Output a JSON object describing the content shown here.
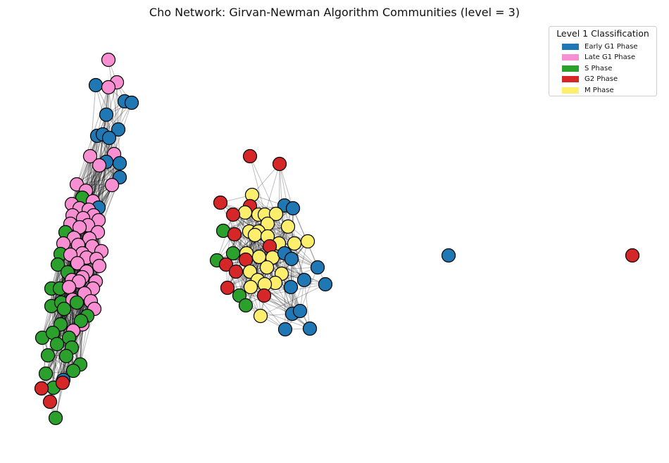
{
  "title": "Cho Network: Girvan-Newman Algorithm Communities (level = 3)",
  "legend": {
    "title": "Level 1 Classification",
    "items": [
      {
        "label": "Early G1 Phase",
        "color": "#1f77b4"
      },
      {
        "label": "Late G1 Phase",
        "color": "#f78fd2"
      },
      {
        "label": "S Phase",
        "color": "#2ca02c"
      },
      {
        "label": "G2 Phase",
        "color": "#d62728"
      },
      {
        "label": "M Phase",
        "color": "#fdef6d"
      }
    ]
  },
  "nodes": {
    "cluster1": [
      [
        "late",
        154,
        85
      ],
      [
        "early",
        136,
        121
      ],
      [
        "late",
        166,
        117
      ],
      [
        "late",
        154,
        124
      ],
      [
        "early",
        177,
        144
      ],
      [
        "early",
        187,
        146
      ],
      [
        "early",
        151,
        163
      ],
      [
        "early",
        168,
        184
      ],
      [
        "early",
        138,
        193
      ],
      [
        "early",
        146,
        191
      ],
      [
        "early",
        155,
        196
      ],
      [
        "late",
        128,
        222
      ],
      [
        "late",
        162,
        219
      ],
      [
        "early",
        170,
        232
      ],
      [
        "early",
        151,
        230
      ],
      [
        "late",
        141,
        235
      ],
      [
        "early",
        170,
        252
      ],
      [
        "late",
        159,
        263
      ],
      [
        "late",
        109,
        262
      ],
      [
        "late",
        122,
        271
      ],
      [
        "s",
        117,
        281
      ],
      [
        "late",
        102,
        290
      ],
      [
        "late",
        132,
        286
      ],
      [
        "late",
        113,
        296
      ],
      [
        "early",
        140,
        295
      ],
      [
        "late",
        126,
        298
      ],
      [
        "late",
        103,
        306
      ],
      [
        "late",
        133,
        306
      ],
      [
        "late",
        118,
        310
      ],
      [
        "late",
        140,
        313
      ],
      [
        "late",
        100,
        318
      ],
      [
        "late",
        125,
        320
      ],
      [
        "late",
        113,
        323
      ],
      [
        "s",
        93,
        330
      ],
      [
        "late",
        139,
        330
      ],
      [
        "late",
        105,
        338
      ],
      [
        "late",
        127,
        339
      ],
      [
        "late",
        90,
        346
      ],
      [
        "late",
        111,
        348
      ],
      [
        "s",
        86,
        361
      ],
      [
        "late",
        131,
        350
      ],
      [
        "late",
        117,
        360
      ],
      [
        "late",
        144,
        357
      ],
      [
        "late",
        100,
        362
      ],
      [
        "late",
        123,
        366
      ],
      [
        "s",
        82,
        376
      ],
      [
        "late",
        137,
        368
      ],
      [
        "late",
        110,
        374
      ],
      [
        "late",
        141,
        378
      ],
      [
        "s",
        96,
        387
      ],
      [
        "late",
        123,
        386
      ],
      [
        "late",
        102,
        398
      ],
      [
        "late",
        117,
        394
      ],
      [
        "late",
        136,
        400
      ],
      [
        "s",
        73,
        410
      ],
      [
        "s",
        85,
        410
      ],
      [
        "late",
        132,
        410
      ],
      [
        "late",
        112,
        400
      ],
      [
        "late",
        98,
        408
      ],
      [
        "late",
        120,
        417
      ],
      [
        "s",
        73,
        435
      ],
      [
        "s",
        87,
        430
      ],
      [
        "late",
        129,
        428
      ],
      [
        "late",
        103,
        426
      ],
      [
        "s",
        91,
        439
      ],
      [
        "s",
        109,
        430
      ],
      [
        "late",
        134,
        439
      ],
      [
        "s",
        124,
        449
      ],
      [
        "late",
        117,
        461
      ],
      [
        "s",
        115,
        456
      ],
      [
        "s",
        86,
        461
      ],
      [
        "late",
        104,
        470
      ],
      [
        "s",
        60,
        480
      ],
      [
        "s",
        75,
        473
      ],
      [
        "s",
        98,
        480
      ],
      [
        "s",
        81,
        489
      ],
      [
        "s",
        102,
        494
      ],
      [
        "s",
        68,
        505
      ],
      [
        "s",
        94,
        506
      ],
      [
        "s",
        114,
        518
      ],
      [
        "s",
        104,
        527
      ],
      [
        "s",
        65,
        531
      ],
      [
        "early",
        90,
        540
      ],
      [
        "s",
        76,
        551
      ],
      [
        "g2",
        89,
        544
      ],
      [
        "g2",
        59,
        552
      ],
      [
        "g2",
        71,
        571
      ],
      [
        "s",
        79,
        594
      ]
    ],
    "cluster2": [
      [
        "g2",
        355,
        222
      ],
      [
        "g2",
        397,
        233
      ],
      [
        "m",
        358,
        277
      ],
      [
        "g2",
        313,
        288
      ],
      [
        "g2",
        355,
        293
      ],
      [
        "early",
        404,
        292
      ],
      [
        "early",
        416,
        296
      ],
      [
        "m",
        348,
        302
      ],
      [
        "m",
        367,
        305
      ],
      [
        "m",
        376,
        305
      ],
      [
        "m",
        392,
        304
      ],
      [
        "g2",
        331,
        305
      ],
      [
        "m",
        380,
        318
      ],
      [
        "m",
        409,
        322
      ],
      [
        "s",
        317,
        328
      ],
      [
        "m",
        354,
        329
      ],
      [
        "m",
        367,
        329
      ],
      [
        "g2",
        333,
        333
      ],
      [
        "m",
        362,
        334
      ],
      [
        "m",
        380,
        336
      ],
      [
        "m",
        396,
        346
      ],
      [
        "m",
        418,
        346
      ],
      [
        "m",
        437,
        343
      ],
      [
        "g2",
        383,
        350
      ],
      [
        "s",
        331,
        360
      ],
      [
        "m",
        350,
        360
      ],
      [
        "m",
        368,
        365
      ],
      [
        "m",
        387,
        366
      ],
      [
        "early",
        404,
        360
      ],
      [
        "early",
        414,
        368
      ],
      [
        "s",
        308,
        370
      ],
      [
        "g2",
        349,
        369
      ],
      [
        "g2",
        321,
        376
      ],
      [
        "g2",
        335,
        386
      ],
      [
        "m",
        355,
        386
      ],
      [
        "m",
        379,
        380
      ],
      [
        "m",
        400,
        389
      ],
      [
        "early",
        451,
        380
      ],
      [
        "early",
        432,
        398
      ],
      [
        "early",
        462,
        404
      ],
      [
        "m",
        366,
        398
      ],
      [
        "m",
        391,
        402
      ],
      [
        "m",
        376,
        404
      ],
      [
        "m",
        356,
        408
      ],
      [
        "early",
        413,
        408
      ],
      [
        "g2",
        323,
        409
      ],
      [
        "s",
        340,
        420
      ],
      [
        "g2",
        375,
        420
      ],
      [
        "s",
        349,
        434
      ],
      [
        "m",
        370,
        449
      ],
      [
        "early",
        415,
        446
      ],
      [
        "early",
        426,
        442
      ],
      [
        "early",
        405,
        468
      ],
      [
        "early",
        440,
        467
      ]
    ],
    "isolated": [
      [
        "early",
        637,
        363
      ],
      [
        "g2",
        898,
        363
      ]
    ]
  }
}
